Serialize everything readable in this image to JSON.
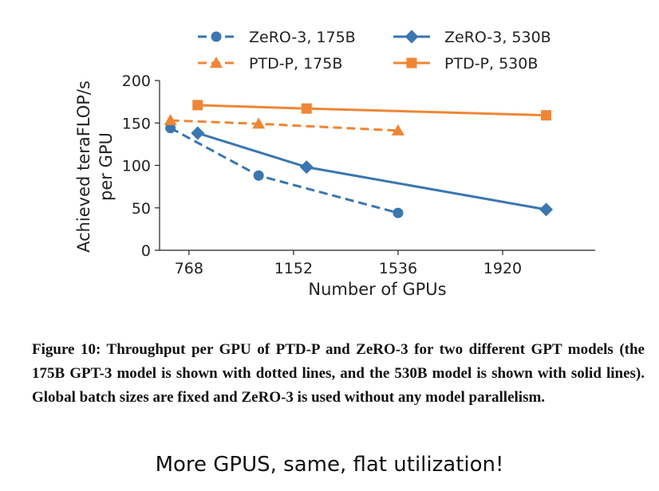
{
  "chart_data": {
    "type": "line",
    "xlabel": "Number of GPUs",
    "ylabel_line1": "Achieved teraFLOP/s",
    "ylabel_line2": "per GPU",
    "xticks": [
      768,
      1152,
      1536,
      1920
    ],
    "yticks": [
      0,
      50,
      100,
      150,
      200
    ],
    "xlim": [
      660,
      2260
    ],
    "ylim": [
      0,
      200
    ],
    "grid": false,
    "legend_position": "top",
    "series": [
      {
        "name": "ZeRO-3, 175B",
        "color": "#3a76b0",
        "dash": "dashed",
        "marker": "circle",
        "x": [
          700,
          1024,
          1536
        ],
        "y": [
          144,
          88,
          44
        ]
      },
      {
        "name": "PTD-P, 175B",
        "color": "#ef8636",
        "dash": "dashed",
        "marker": "triangle",
        "x": [
          700,
          1024,
          1536
        ],
        "y": [
          153,
          149,
          141
        ]
      },
      {
        "name": "ZeRO-3, 530B",
        "color": "#3a76b0",
        "dash": "solid",
        "marker": "diamond",
        "x": [
          800,
          1200,
          2080
        ],
        "y": [
          138,
          98,
          48
        ]
      },
      {
        "name": "PTD-P, 530B",
        "color": "#ef8636",
        "dash": "solid",
        "marker": "square",
        "x": [
          800,
          1200,
          2080
        ],
        "y": [
          171,
          167,
          159
        ]
      }
    ],
    "legend_order": [
      0,
      1,
      2,
      3
    ]
  },
  "caption": "Figure 10: Throughput per GPU of PTD-P and ZeRO-3 for two different GPT models (the 175B GPT-3 model is shown with dotted lines, and the 530B model is shown with solid lines). Global batch sizes are fixed and ZeRO-3 is used without any model parallelism.",
  "note": "More GPUS, same, flat utilization!"
}
